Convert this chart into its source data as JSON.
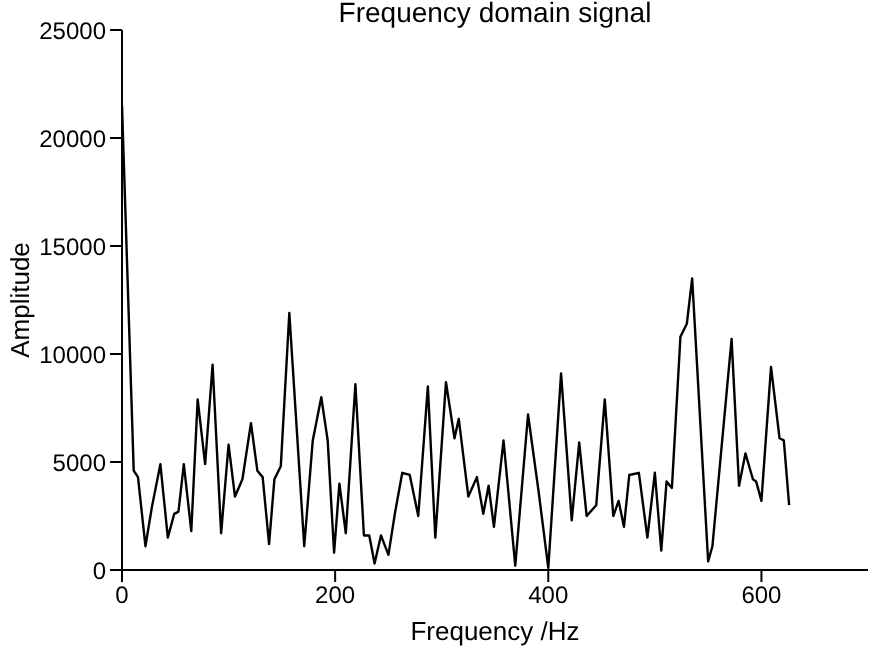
{
  "chart_data": {
    "type": "line",
    "title": "Frequency domain signal",
    "xlabel": "Frequency /Hz",
    "ylabel": "Amplitude",
    "x": [
      0,
      11,
      15,
      22,
      28,
      36,
      43,
      49,
      53,
      58,
      65,
      71,
      78,
      85,
      93,
      100,
      106,
      113,
      121,
      127,
      132,
      138,
      143,
      149,
      157,
      171,
      179,
      187,
      193,
      199,
      204,
      210,
      219,
      227,
      232,
      237,
      243,
      250,
      256,
      263,
      270,
      278,
      287,
      294,
      304,
      312,
      316,
      325,
      333,
      339,
      344,
      349,
      358,
      369,
      381,
      391,
      400,
      412,
      422,
      429,
      436,
      445,
      453,
      461,
      466,
      471,
      476,
      485,
      493,
      500,
      506,
      511,
      516,
      524,
      530,
      535,
      550,
      554,
      572,
      579,
      585,
      592,
      595,
      600,
      609,
      617,
      621,
      626
    ],
    "series": [
      {
        "color": "#000000",
        "values": [
          21500,
          4600,
          4300,
          1100,
          2900,
          4900,
          1500,
          2600,
          2700,
          4900,
          1800,
          7900,
          4900,
          9500,
          1700,
          5800,
          3400,
          4200,
          6800,
          4600,
          4300,
          1200,
          4200,
          4800,
          11900,
          1100,
          6000,
          8000,
          6000,
          800,
          4000,
          1700,
          8600,
          1600,
          1600,
          300,
          1600,
          700,
          2600,
          4500,
          4400,
          2500,
          8500,
          1500,
          8700,
          6100,
          7000,
          3400,
          4300,
          2600,
          3900,
          2000,
          6000,
          200,
          7200,
          3600,
          100,
          9100,
          2300,
          5900,
          2500,
          3000,
          7900,
          2500,
          3200,
          2000,
          4400,
          4500,
          1500,
          4500,
          900,
          4100,
          3800,
          10800,
          11400,
          13500,
          400,
          1100,
          10700,
          3900,
          5400,
          4200,
          4100,
          3200,
          9400,
          6100,
          6000,
          3000
        ]
      }
    ],
    "xlim": [
      0,
      700
    ],
    "xticks": [
      0,
      200,
      400,
      600
    ],
    "ylim": [
      0,
      25000
    ],
    "yticks": [
      0,
      5000,
      10000,
      15000,
      20000,
      25000
    ],
    "grid": false,
    "legend": false,
    "marker": "none",
    "line_style": "solid"
  }
}
